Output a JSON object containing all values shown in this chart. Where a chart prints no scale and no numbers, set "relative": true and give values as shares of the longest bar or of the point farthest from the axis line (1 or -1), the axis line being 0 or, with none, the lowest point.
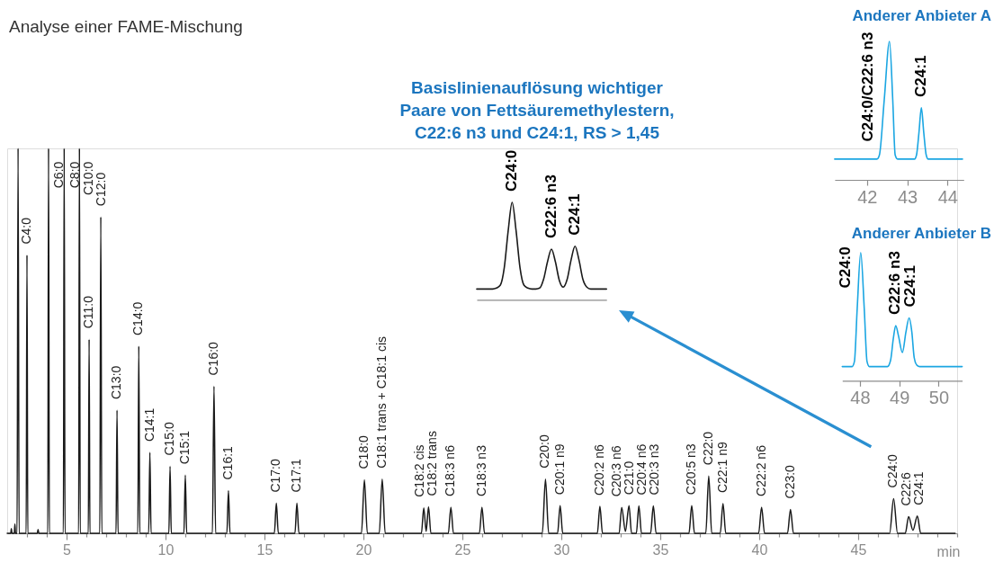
{
  "chart_data": [
    {
      "type": "line",
      "title": "Analyse einer FAME-Mischung",
      "xlabel": "min",
      "relative": true,
      "x": [
        2.0,
        2.18,
        2.21,
        2.24,
        2.36,
        2.39,
        2.42,
        2.5,
        2.55,
        2.6,
        2.96,
        3.0,
        3.04,
        3.52,
        3.56,
        3.6,
        4.05,
        4.09,
        4.13,
        4.84,
        4.88,
        4.92,
        5.61,
        5.65,
        5.69,
        6.1,
        6.14,
        6.18,
        6.68,
        6.73,
        6.78,
        7.5,
        7.55,
        7.6,
        8.6,
        8.65,
        8.7,
        9.15,
        9.21,
        9.27,
        10.17,
        10.23,
        10.29,
        10.93,
        11.0,
        11.07,
        12.37,
        12.45,
        12.53,
        13.1,
        13.18,
        13.26,
        15.5,
        15.6,
        15.7,
        16.54,
        16.64,
        16.74,
        19.9,
        20.05,
        20.2,
        20.8,
        20.95,
        21.1,
        22.93,
        23.05,
        23.17,
        23.29,
        23.41,
        24.29,
        24.42,
        24.55,
        25.86,
        25.99,
        26.12,
        29.04,
        29.2,
        29.36,
        29.81,
        29.94,
        30.07,
        31.82,
        31.95,
        32.08,
        32.92,
        33.05,
        33.24,
        33.42,
        33.55,
        33.79,
        33.92,
        34.05,
        34.51,
        34.65,
        34.79,
        36.45,
        36.59,
        36.73,
        37.3,
        37.45,
        37.6,
        38.03,
        38.17,
        38.31,
        39.97,
        40.12,
        40.27,
        41.43,
        41.58,
        41.73,
        46.59,
        46.79,
        46.99,
        47.38,
        47.55,
        47.77,
        47.99,
        48.16,
        49.9
      ],
      "series": [
        {
          "color": "#1a1a1a",
          "values": [
            0,
            0,
            0.012,
            0,
            0,
            0.024,
            0,
            0,
            1,
            0,
            0,
            0.723,
            0,
            0,
            0.01,
            0,
            0,
            1,
            0,
            0,
            1,
            0,
            0,
            1,
            0,
            0,
            0.504,
            0,
            0,
            0.822,
            0,
            0,
            0.32,
            0,
            0,
            0.486,
            0,
            0,
            0.21,
            0,
            0,
            0.174,
            0,
            0,
            0.151,
            0,
            0,
            0.382,
            0,
            0,
            0.111,
            0,
            0,
            0.078,
            0,
            0,
            0.078,
            0,
            0,
            0.139,
            0,
            0,
            0.141,
            0,
            0,
            0.066,
            0.005,
            0.069,
            0,
            0,
            0.068,
            0,
            0,
            0.068,
            0,
            0,
            0.141,
            0,
            0,
            0.072,
            0,
            0,
            0.07,
            0,
            0,
            0.067,
            0.005,
            0.072,
            0,
            0,
            0.071,
            0,
            0,
            0.071,
            0,
            0,
            0.072,
            0,
            0,
            0.149,
            0,
            0,
            0.077,
            0,
            0,
            0.068,
            0,
            0,
            0.062,
            0,
            0,
            0.09,
            0,
            0,
            0.043,
            0.008,
            0.045,
            0,
            0
          ]
        }
      ],
      "xlim": [
        2,
        50
      ],
      "xticks": [
        {
          "value": 3,
          "label": null
        },
        {
          "value": 4,
          "label": null
        },
        5,
        {
          "value": 6,
          "label": null
        },
        {
          "value": 7,
          "label": null
        },
        {
          "value": 8,
          "label": null
        },
        {
          "value": 9,
          "label": null
        },
        10,
        {
          "value": 11,
          "label": null
        },
        {
          "value": 12,
          "label": null
        },
        {
          "value": 13,
          "label": null
        },
        {
          "value": 14,
          "label": null
        },
        15,
        {
          "value": 16,
          "label": null
        },
        {
          "value": 17,
          "label": null
        },
        {
          "value": 18,
          "label": null
        },
        {
          "value": 19,
          "label": null
        },
        20,
        {
          "value": 21,
          "label": null
        },
        {
          "value": 22,
          "label": null
        },
        {
          "value": 23,
          "label": null
        },
        {
          "value": 24,
          "label": null
        },
        25,
        {
          "value": 26,
          "label": null
        },
        {
          "value": 27,
          "label": null
        },
        {
          "value": 28,
          "label": null
        },
        {
          "value": 29,
          "label": null
        },
        30,
        {
          "value": 31,
          "label": null
        },
        {
          "value": 32,
          "label": null
        },
        {
          "value": 33,
          "label": null
        },
        {
          "value": 34,
          "label": null
        },
        35,
        {
          "value": 36,
          "label": null
        },
        {
          "value": 37,
          "label": null
        },
        {
          "value": 38,
          "label": null
        },
        {
          "value": 39,
          "label": null
        },
        40,
        {
          "value": 41,
          "label": null
        },
        {
          "value": 42,
          "label": null
        },
        {
          "value": 43,
          "label": null
        },
        {
          "value": 44,
          "label": null
        },
        45,
        {
          "value": 46,
          "label": null
        },
        {
          "value": 47,
          "label": null
        },
        {
          "value": 48,
          "label": null
        },
        {
          "value": 49,
          "label": null
        },
        {
          "value": 50,
          "label": null
        }
      ],
      "annotations": [
        {
          "text": "C4:0",
          "x": 3.0,
          "y": 0.723
        },
        {
          "text": "C6:0",
          "x": 4.09,
          "y": 1
        },
        {
          "text": "C8:0",
          "x": 4.88,
          "y": 1
        },
        {
          "text": "C10:0",
          "x": 5.65,
          "y": 1
        },
        {
          "text": "C11:0",
          "x": 6.14,
          "y": 0.504
        },
        {
          "text": "C12:0",
          "x": 6.73,
          "y": 0.822
        },
        {
          "text": "C13:0",
          "x": 7.55,
          "y": 0.32
        },
        {
          "text": "C14:0",
          "x": 8.65,
          "y": 0.486
        },
        {
          "text": "C14:1",
          "x": 9.21,
          "y": 0.21
        },
        {
          "text": "C15:0",
          "x": 10.23,
          "y": 0.174
        },
        {
          "text": "C15:1",
          "x": 11.0,
          "y": 0.151
        },
        {
          "text": "C16:0",
          "x": 12.45,
          "y": 0.382
        },
        {
          "text": "C16:1",
          "x": 13.18,
          "y": 0.111
        },
        {
          "text": "C17:0",
          "x": 15.6,
          "y": 0.078
        },
        {
          "text": "C17:1",
          "x": 16.64,
          "y": 0.078
        },
        {
          "text": "C18:0",
          "x": 20.05,
          "y": 0.139
        },
        {
          "text": "C18:1 trans + C18:1 cis",
          "x": 20.95,
          "y": 0.141
        },
        {
          "text": "C18:2 cis",
          "x": 23.05,
          "y": 0.066
        },
        {
          "text": "C18:2 trans",
          "x": 23.29,
          "y": 0.069
        },
        {
          "text": "C18:3 n6",
          "x": 24.42,
          "y": 0.068
        },
        {
          "text": "C18:3 n3",
          "x": 25.99,
          "y": 0.068
        },
        {
          "text": "C20:0",
          "x": 29.2,
          "y": 0.141
        },
        {
          "text": "C20:1 n9",
          "x": 29.94,
          "y": 0.072
        },
        {
          "text": "C20:2 n6",
          "x": 31.95,
          "y": 0.07
        },
        {
          "text": "C20:3 n6",
          "x": 33.05,
          "y": 0.067
        },
        {
          "text": "C21:0",
          "x": 33.42,
          "y": 0.072
        },
        {
          "text": "C20:4 n6",
          "x": 33.92,
          "y": 0.071
        },
        {
          "text": "C20:3 n3",
          "x": 34.65,
          "y": 0.071
        },
        {
          "text": "C20:5 n3",
          "x": 36.59,
          "y": 0.072
        },
        {
          "text": "C22:0",
          "x": 37.45,
          "y": 0.149
        },
        {
          "text": "C22:1 n9",
          "x": 38.17,
          "y": 0.077
        },
        {
          "text": "C22:2 n6",
          "x": 40.12,
          "y": 0.068
        },
        {
          "text": "C23:0",
          "x": 41.58,
          "y": 0.062
        },
        {
          "text": "C24:0",
          "x": 46.79,
          "y": 0.09
        },
        {
          "text": "C22:6",
          "x": 47.55,
          "y": 0.043
        },
        {
          "text": "C24:1",
          "x": 47.99,
          "y": 0.045
        }
      ]
    },
    {
      "type": "line",
      "title": "Basislinienauflösung wichtiger Paare von Fettsäuremethylestern, C22:6 n3 und C24:1, RS > 1,45",
      "relative": true,
      "categories": [
        null,
        null,
        null,
        null,
        null,
        null,
        null,
        null,
        null,
        null,
        null,
        null,
        null,
        null,
        null,
        null,
        null,
        null,
        null,
        null,
        null,
        null,
        null,
        null,
        null,
        null,
        null,
        null,
        null,
        null,
        null,
        null,
        null,
        null
      ],
      "series": [
        {
          "color": "#1a1a1a",
          "values": [
            0.11,
            0.11,
            0.11,
            0.11,
            0.11,
            0.12,
            0.15,
            0.33,
            0.71,
            1,
            0.71,
            0.33,
            0.15,
            0.12,
            0.11,
            0.11,
            0.12,
            0.21,
            0.39,
            0.52,
            0.39,
            0.2,
            0.13,
            0.21,
            0.41,
            0.55,
            0.41,
            0.21,
            0.13,
            0.11,
            0.11,
            0.11,
            0.11,
            0.11
          ]
        }
      ],
      "annotations": [
        {
          "text": "C24:0",
          "y": 1
        },
        {
          "text": "C22:6 n3",
          "y": 0.52
        },
        {
          "text": "C24:1",
          "y": 0.55
        }
      ]
    },
    {
      "type": "line",
      "title": "Anderer Anbieter A",
      "relative": true,
      "x": [
        41.2,
        42.25,
        42.31,
        42.43,
        42.56,
        42.64,
        42.7,
        42.76,
        43.18,
        43.23,
        43.29,
        43.35,
        43.41,
        43.47,
        43.52,
        44.37
      ],
      "series": [
        {
          "color": "#1ba6e2",
          "values": [
            0.15,
            0.15,
            0.18,
            0.58,
            1,
            0.58,
            0.18,
            0.15,
            0.15,
            0.18,
            0.34,
            0.52,
            0.34,
            0.18,
            0.15,
            0.15
          ]
        }
      ],
      "xlim": [
        41.2,
        44.4
      ],
      "xticks": [
        42,
        43,
        44
      ],
      "annotations": [
        {
          "text": "C24:0/C22:6 n3",
          "x": 42.56,
          "y": 1
        },
        {
          "text": "C24:1",
          "x": 43.35,
          "y": 0.52
        }
      ]
    },
    {
      "type": "line",
      "title": "Anderer Anbieter B",
      "relative": true,
      "x": [
        47.55,
        47.8,
        47.86,
        47.93,
        48.02,
        48.11,
        48.18,
        48.24,
        48.7,
        48.78,
        48.85,
        48.91,
        48.98,
        49.08,
        49.17,
        49.25,
        49.32,
        49.38,
        49.45,
        49.52,
        50.6
      ],
      "series": [
        {
          "color": "#1ba6e2",
          "values": [
            0.11,
            0.11,
            0.15,
            0.56,
            1,
            0.56,
            0.15,
            0.11,
            0.11,
            0.16,
            0.33,
            0.43,
            0.35,
            0.22,
            0.38,
            0.49,
            0.38,
            0.18,
            0.12,
            0.11,
            0.11
          ]
        }
      ],
      "xlim": [
        47.55,
        50.6
      ],
      "xticks": [
        48,
        49,
        50
      ],
      "annotations": [
        {
          "text": "C24:0",
          "x": 48.02,
          "y": 1
        },
        {
          "text": "C22:6 n3",
          "x": 48.91,
          "y": 0.43
        },
        {
          "text": "C24:1",
          "x": 49.25,
          "y": 0.49
        }
      ]
    }
  ]
}
